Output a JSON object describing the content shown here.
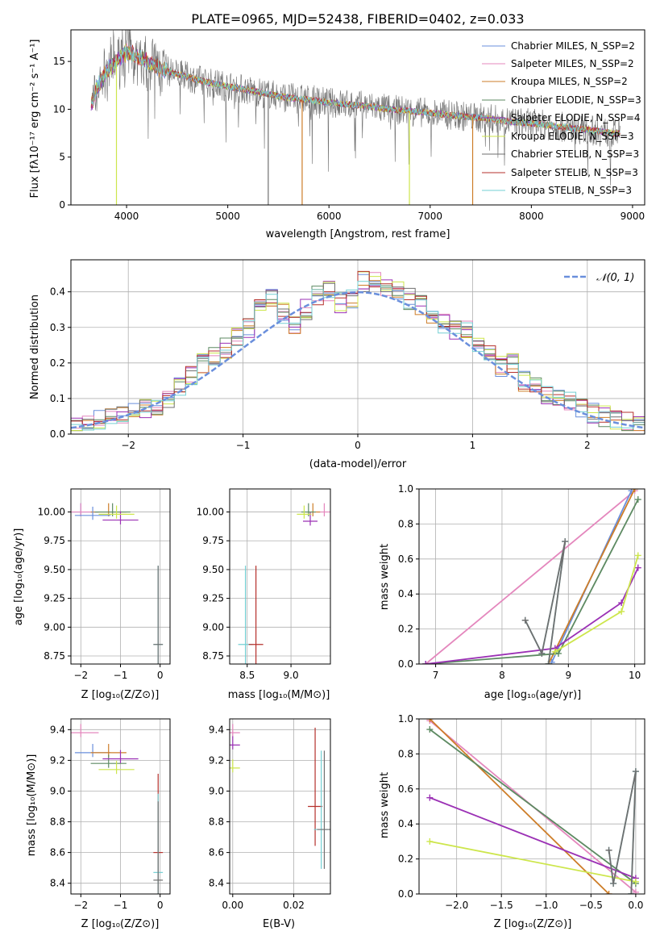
{
  "chart_data": [
    {
      "id": "spectrum",
      "type": "line",
      "title": "PLATE=0965, MJD=52438, FIBERID=0402, z=0.033",
      "xlabel": "wavelength [Angstrom, rest frame]",
      "ylabel": "Flux [fλ10⁻¹⁷ erg cm⁻² s⁻¹ A⁻¹]",
      "xlim": [
        3450,
        9120
      ],
      "ylim": [
        0,
        18.3
      ],
      "xticks": [
        4000,
        5000,
        6000,
        7000,
        8000,
        9000
      ],
      "yticks": [
        0,
        5,
        10,
        15
      ],
      "grid": false,
      "legend_position": "top-right",
      "series": [
        {
          "name": "Chabrier MILES, N_SSP=2",
          "color": "#6a8fdc"
        },
        {
          "name": "Salpeter MILES, N_SSP=2",
          "color": "#e487bd"
        },
        {
          "name": "Kroupa MILES, N_SSP=2",
          "color": "#cd7d28"
        },
        {
          "name": "Chabrier ELODIE, N_SSP=3",
          "color": "#5d8a62"
        },
        {
          "name": "Salpeter ELODIE, N_SSP=4",
          "color": "#9b31b5"
        },
        {
          "name": "Kroupa ELODIE, N_SSP=3",
          "color": "#cde64c"
        },
        {
          "name": "Chabrier STELIB, N_SSP=3",
          "color": "#6f6f6f"
        },
        {
          "name": "Salpeter STELIB, N_SSP=3",
          "color": "#b5312c"
        },
        {
          "name": "Kroupa STELIB, N_SSP=3",
          "color": "#73cfd3"
        }
      ],
      "continuum": {
        "x": [
          3650,
          3700,
          3800,
          3900,
          4000,
          4100,
          4200,
          4300,
          4400,
          4600,
          4800,
          5000,
          5200,
          5400,
          5600,
          5800,
          6000,
          6200,
          6400,
          6600,
          6800,
          7000,
          7200,
          7400,
          7600,
          7800,
          8000,
          8200,
          8400,
          8600,
          8800
        ],
        "y": [
          10.5,
          12.0,
          14.0,
          15.0,
          16.0,
          15.6,
          15.0,
          14.4,
          14.0,
          13.4,
          12.8,
          12.4,
          12.0,
          11.6,
          11.2,
          11.0,
          10.7,
          10.5,
          10.3,
          10.0,
          9.8,
          9.6,
          9.4,
          9.2,
          9.0,
          8.7,
          8.5,
          8.3,
          8.0,
          7.8,
          7.5
        ]
      },
      "absorption_dips": [
        {
          "x": 3900,
          "y": 0.0
        },
        {
          "x": 5400,
          "y": 0.0
        },
        {
          "x": 5735,
          "y": 0.0
        },
        {
          "x": 6795,
          "y": 0.0
        },
        {
          "x": 7420,
          "y": 0.0
        }
      ]
    },
    {
      "id": "residuals",
      "type": "line",
      "xlabel": "(data-model)/error",
      "ylabel": "Normed distribution",
      "xlim": [
        -2.5,
        2.5
      ],
      "ylim": [
        0,
        0.49
      ],
      "xticks": [
        -2,
        -1,
        0,
        1,
        2
      ],
      "yticks": [
        0.0,
        0.1,
        0.2,
        0.3,
        0.4
      ],
      "grid": true,
      "legend_position": "top-right",
      "legend": "𝒩(0, 1)",
      "gaussian_color": "#6a8fdc",
      "bin_edges": [
        -2.5,
        -2.4,
        -2.3,
        -2.2,
        -2.1,
        -2.0,
        -1.9,
        -1.8,
        -1.7,
        -1.6,
        -1.5,
        -1.4,
        -1.3,
        -1.2,
        -1.1,
        -1.0,
        -0.9,
        -0.8,
        -0.7,
        -0.6,
        -0.5,
        -0.4,
        -0.3,
        -0.2,
        -0.1,
        0.0,
        0.1,
        0.2,
        0.3,
        0.4,
        0.5,
        0.6,
        0.7,
        0.8,
        0.9,
        1.0,
        1.1,
        1.2,
        1.3,
        1.4,
        1.5,
        1.6,
        1.7,
        1.8,
        1.9,
        2.0,
        2.1,
        2.2,
        2.3,
        2.4,
        2.5
      ],
      "histogram_means": [
        0.03,
        0.035,
        0.04,
        0.045,
        0.05,
        0.06,
        0.07,
        0.08,
        0.1,
        0.13,
        0.16,
        0.2,
        0.22,
        0.24,
        0.27,
        0.3,
        0.36,
        0.38,
        0.34,
        0.31,
        0.35,
        0.39,
        0.4,
        0.37,
        0.38,
        0.43,
        0.44,
        0.41,
        0.4,
        0.38,
        0.36,
        0.33,
        0.31,
        0.29,
        0.3,
        0.25,
        0.22,
        0.19,
        0.2,
        0.15,
        0.13,
        0.11,
        0.1,
        0.09,
        0.07,
        0.06,
        0.05,
        0.04,
        0.035,
        0.03
      ]
    },
    {
      "id": "age-vs-Z",
      "type": "scatter",
      "xlabel": "Z [log₁₀(Z/Z⊙)]",
      "ylabel": "age  [log₁₀(age/yr)]",
      "xlim": [
        -2.25,
        0.25
      ],
      "ylim": [
        8.68,
        10.2
      ],
      "xticks": [
        -2,
        -1,
        0
      ],
      "yticks": [
        8.75,
        9.0,
        9.25,
        9.5,
        9.75,
        10.0
      ],
      "grid": true,
      "points": [
        {
          "color": "#6a8fdc",
          "x": -2.0,
          "y": 10.0
        },
        {
          "color": "#e487bd",
          "x": -2.0,
          "y": 10.0
        },
        {
          "color": "#cd7d28",
          "x": -1.3,
          "y": 10.0
        },
        {
          "color": "#5d8a62",
          "x": -1.2,
          "y": 10.0
        },
        {
          "color": "#9b31b5",
          "x": -1.0,
          "y": 9.93
        },
        {
          "color": "#cde64c",
          "x": -1.1,
          "y": 9.98
        },
        {
          "color": "#6a8fdc",
          "x": -1.7,
          "y": 9.97
        },
        {
          "color": "#73cfd3",
          "x": -0.05,
          "y": 8.85
        },
        {
          "color": "#6f6f6f",
          "x": -0.05,
          "y": 8.85
        }
      ]
    },
    {
      "id": "age-vs-mass",
      "type": "scatter",
      "xlabel": "mass [log₁₀(M/M⊙)]",
      "xlim": [
        8.3,
        9.45
      ],
      "ylim": [
        8.68,
        10.2
      ],
      "xticks": [
        8.5,
        9.0
      ],
      "yticks": [
        8.75,
        9.0,
        9.25,
        9.5,
        9.75,
        10.0
      ],
      "grid": true,
      "points": [
        {
          "color": "#e487bd",
          "x": 9.38,
          "y": 10.0
        },
        {
          "color": "#cd7d28",
          "x": 9.25,
          "y": 10.0
        },
        {
          "color": "#5d8a62",
          "x": 9.2,
          "y": 10.0
        },
        {
          "color": "#9b31b5",
          "x": 9.22,
          "y": 9.92
        },
        {
          "color": "#cde64c",
          "x": 9.15,
          "y": 9.98
        },
        {
          "color": "#73cfd3",
          "x": 8.48,
          "y": 8.85
        },
        {
          "color": "#b5312c",
          "x": 8.6,
          "y": 8.85
        }
      ]
    },
    {
      "id": "mass-weight-vs-age",
      "type": "line",
      "xlabel": "age  [log₁₀(age/yr)]",
      "ylabel": "mass weight",
      "xlim": [
        6.75,
        10.15
      ],
      "ylim": [
        0,
        1.0
      ],
      "xticks": [
        7,
        8,
        9,
        10
      ],
      "yticks": [
        0.0,
        0.2,
        0.4,
        0.6,
        0.8,
        1.0
      ],
      "grid": true,
      "series": [
        {
          "color": "#e487bd",
          "x": [
            6.85,
            10.0
          ],
          "y": [
            0.0,
            0.99
          ]
        },
        {
          "color": "#6a8fdc",
          "x": [
            8.75,
            9.95
          ],
          "y": [
            0.01,
            0.99
          ]
        },
        {
          "color": "#cd7d28",
          "x": [
            8.7,
            10.0
          ],
          "y": [
            0.0,
            1.0
          ]
        },
        {
          "color": "#5d8a62",
          "x": [
            6.85,
            8.85,
            10.05
          ],
          "y": [
            0.0,
            0.06,
            0.94
          ]
        },
        {
          "color": "#9b31b5",
          "x": [
            6.85,
            8.8,
            9.8,
            10.05
          ],
          "y": [
            0.0,
            0.09,
            0.35,
            0.55
          ]
        },
        {
          "color": "#cde64c",
          "x": [
            8.8,
            9.8,
            10.05
          ],
          "y": [
            0.07,
            0.3,
            0.62
          ]
        },
        {
          "color": "#73cfd3",
          "x": [
            8.35,
            8.6,
            8.95,
            8.7
          ],
          "y": [
            0.25,
            0.06,
            0.7,
            0.0
          ]
        },
        {
          "color": "#6f6f6f",
          "x": [
            8.35,
            8.6,
            8.95,
            8.7
          ],
          "y": [
            0.25,
            0.06,
            0.7,
            0.0
          ]
        }
      ]
    },
    {
      "id": "mass-vs-Z",
      "type": "scatter",
      "xlabel": "Z [log₁₀(Z/Z⊙)]",
      "ylabel": "mass [log₁₀(M/M⊙)]",
      "xlim": [
        -2.25,
        0.25
      ],
      "ylim": [
        8.33,
        9.47
      ],
      "xticks": [
        -2,
        -1,
        0
      ],
      "yticks": [
        8.4,
        8.6,
        8.8,
        9.0,
        9.2,
        9.4
      ],
      "grid": true,
      "points": [
        {
          "color": "#e487bd",
          "x": -2.0,
          "y": 9.38
        },
        {
          "color": "#6a8fdc",
          "x": -1.7,
          "y": 9.25
        },
        {
          "color": "#cd7d28",
          "x": -1.3,
          "y": 9.25
        },
        {
          "color": "#5d8a62",
          "x": -1.3,
          "y": 9.18
        },
        {
          "color": "#9b31b5",
          "x": -1.0,
          "y": 9.21
        },
        {
          "color": "#cde64c",
          "x": -1.1,
          "y": 9.14
        },
        {
          "color": "#b5312c",
          "x": -0.05,
          "y": 8.6
        },
        {
          "color": "#73cfd3",
          "x": -0.05,
          "y": 8.47
        },
        {
          "color": "#6f6f6f",
          "x": -0.05,
          "y": 8.42
        }
      ]
    },
    {
      "id": "mass-vs-EBV",
      "type": "scatter",
      "xlabel": "E(B-V)",
      "xlim": [
        -0.001,
        0.032
      ],
      "ylim": [
        8.33,
        9.47
      ],
      "xticks": [
        0.0,
        0.02
      ],
      "yticks": [
        8.4,
        8.6,
        8.8,
        9.0,
        9.2,
        9.4
      ],
      "grid": true,
      "points": [
        {
          "color": "#e487bd",
          "x": 0.0,
          "y": 9.38
        },
        {
          "color": "#9b31b5",
          "x": 0.0,
          "y": 9.3
        },
        {
          "color": "#cde64c",
          "x": 0.0,
          "y": 9.15
        },
        {
          "color": "#b5312c",
          "x": 0.027,
          "y": 8.9
        },
        {
          "color": "#73cfd3",
          "x": 0.029,
          "y": 8.75
        },
        {
          "color": "#6f6f6f",
          "x": 0.03,
          "y": 8.75
        }
      ]
    },
    {
      "id": "mass-weight-vs-Z",
      "type": "line",
      "xlabel": "Z [log₁₀(Z/Z⊙)]",
      "ylabel": "mass weight",
      "xlim": [
        -2.42,
        0.1
      ],
      "ylim": [
        0,
        1.0
      ],
      "xticks": [
        -2.0,
        -1.5,
        -1.0,
        -0.5,
        0.0
      ],
      "yticks": [
        0.0,
        0.2,
        0.4,
        0.6,
        0.8,
        1.0
      ],
      "grid": true,
      "series": [
        {
          "color": "#e487bd",
          "x": [
            -2.3,
            0.0
          ],
          "y": [
            0.99,
            0.01
          ]
        },
        {
          "color": "#cd7d28",
          "x": [
            -2.3,
            -0.3
          ],
          "y": [
            1.0,
            0.0
          ]
        },
        {
          "color": "#5d8a62",
          "x": [
            -2.3,
            0.0
          ],
          "y": [
            0.94,
            0.06
          ]
        },
        {
          "color": "#9b31b5",
          "x": [
            -2.3,
            0.0
          ],
          "y": [
            0.55,
            0.09
          ]
        },
        {
          "color": "#cde64c",
          "x": [
            -2.3,
            0.0
          ],
          "y": [
            0.3,
            0.07
          ]
        },
        {
          "color": "#73cfd3",
          "x": [
            -0.3,
            -0.25,
            0.0,
            -0.05
          ],
          "y": [
            0.25,
            0.06,
            0.7,
            0.0
          ]
        },
        {
          "color": "#6f6f6f",
          "x": [
            -0.3,
            -0.25,
            0.0,
            -0.05
          ],
          "y": [
            0.25,
            0.06,
            0.7,
            0.0
          ]
        }
      ]
    }
  ]
}
